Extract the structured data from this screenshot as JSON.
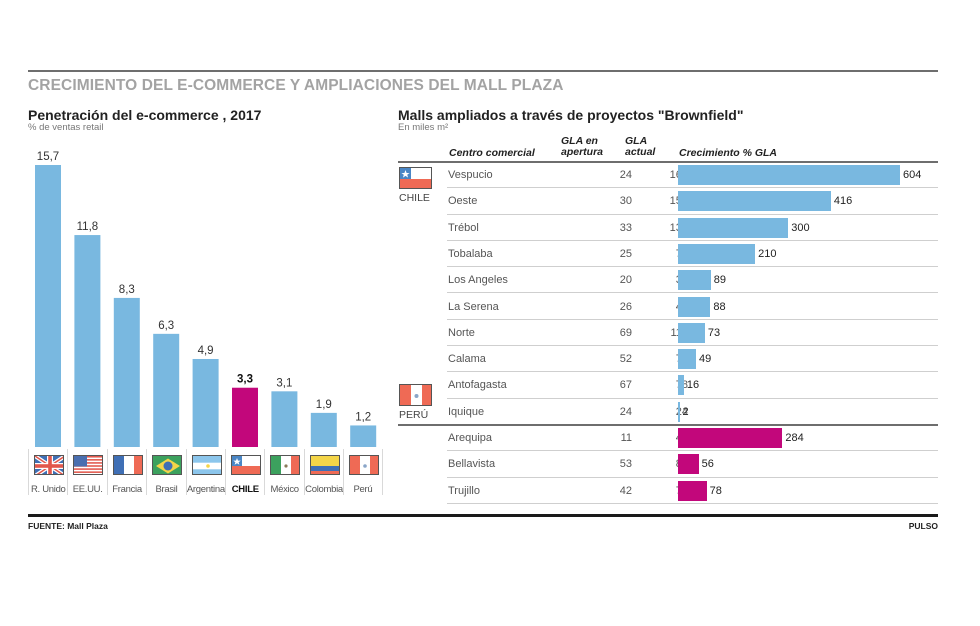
{
  "header": {
    "title": "CRECIMIENTO DEL E-COMMERCE Y AMPLIACIONES DEL MALL PLAZA"
  },
  "colors": {
    "bar_default": "#79b8e0",
    "bar_highlight": "#c2077b",
    "title_gray": "#a3a3a3"
  },
  "footer": {
    "source": "FUENTE: Mall Plaza",
    "brand": "PULSO"
  },
  "chart_data": [
    {
      "type": "bar",
      "title": "Penetración del e-commerce , 2017",
      "subtitle": "% de ventas retail",
      "xlabel": "",
      "ylabel": "% de ventas retail",
      "categories": [
        "R. Unido",
        "EE.UU.",
        "Francia",
        "Brasil",
        "Argentina",
        "CHILE",
        "México",
        "Colombia",
        "Perú"
      ],
      "values": [
        15.7,
        11.8,
        8.3,
        6.3,
        4.9,
        3.3,
        3.1,
        1.9,
        1.2
      ],
      "value_labels": [
        "15,7",
        "11,8",
        "8,3",
        "6,3",
        "4,9",
        "3,3",
        "3,1",
        "1,9",
        "1,2"
      ],
      "flags": [
        "uk-flag",
        "usa-flag",
        "france-flag",
        "brazil-flag",
        "argentina-flag",
        "chile-flag",
        "mexico-flag",
        "colombia-flag",
        "peru-flag"
      ],
      "highlight": "CHILE",
      "ylim": [
        0,
        16
      ],
      "grid": false
    },
    {
      "type": "table",
      "title": "Malls ampliados a través de proyectos \"Brownfield\"",
      "subtitle": "En miles m²",
      "columns": [
        "Centro comercial",
        "GLA en apertura",
        "GLA actual",
        "Crecimiento % GLA"
      ],
      "column_header_lines": {
        "mall": [
          "Centro comercial"
        ],
        "opening": [
          "GLA en",
          "apertura"
        ],
        "current": [
          "GLA",
          "actual"
        ],
        "growth": [
          "Crecimiento % GLA"
        ]
      },
      "groups": [
        {
          "country": "CHILE",
          "flag": "chile-flag",
          "rows": [
            {
              "mall": "Vespucio",
              "gla_opening": 24,
              "gla_current": 169,
              "growth_pct": 604
            },
            {
              "mall": "Oeste",
              "gla_opening": 30,
              "gla_current": 155,
              "growth_pct": 416
            },
            {
              "mall": "Trébol",
              "gla_opening": 33,
              "gla_current": 132,
              "growth_pct": 300
            },
            {
              "mall": "Tobalaba",
              "gla_opening": 25,
              "gla_current": 77,
              "growth_pct": 210
            },
            {
              "mall": "Los Angeles",
              "gla_opening": 20,
              "gla_current": 38,
              "growth_pct": 89
            },
            {
              "mall": "La Serena",
              "gla_opening": 26,
              "gla_current": 49,
              "growth_pct": 88
            },
            {
              "mall": "Norte",
              "gla_opening": 69,
              "gla_current": 119,
              "growth_pct": 73
            },
            {
              "mall": "Calama",
              "gla_opening": 52,
              "gla_current": 77,
              "growth_pct": 49
            },
            {
              "mall": "Antofagasta",
              "gla_opening": 67,
              "gla_current": 78,
              "growth_pct": 16
            },
            {
              "mall": "Iquique",
              "gla_opening": 24,
              "gla_current": 24,
              "growth_pct": 2
            }
          ]
        },
        {
          "country": "PERÚ",
          "flag": "peru-flag",
          "rows": [
            {
              "mall": "Arequipa",
              "gla_opening": 11,
              "gla_current": 42,
              "growth_pct": 284
            },
            {
              "mall": "Bellavista",
              "gla_opening": 53,
              "gla_current": 83,
              "growth_pct": 56
            },
            {
              "mall": "Trujillo",
              "gla_opening": 42,
              "gla_current": 75,
              "growth_pct": 78
            }
          ]
        }
      ]
    }
  ]
}
